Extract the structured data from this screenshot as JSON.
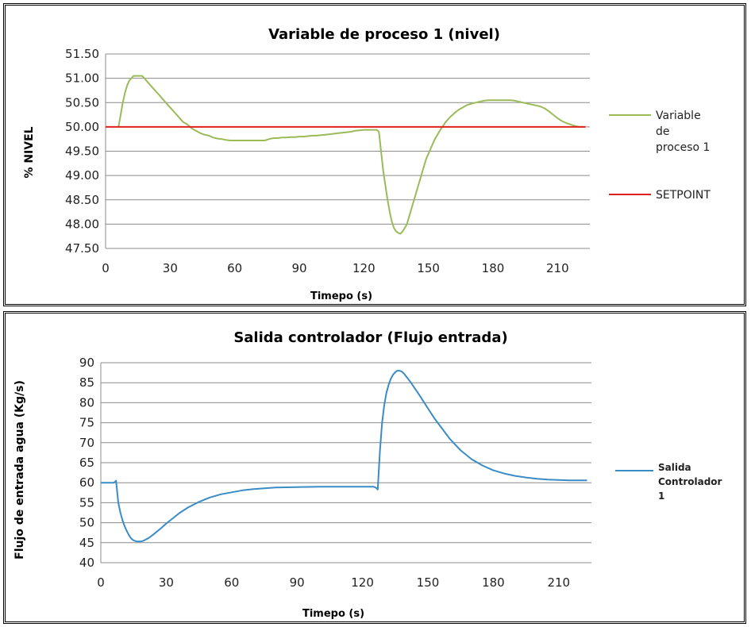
{
  "chart_data": [
    {
      "type": "line",
      "title": "Variable de proceso  1 (nivel)",
      "xlabel": "Timepo (s)",
      "ylabel": "% NIVEL",
      "xlim": [
        0,
        225
      ],
      "ylim": [
        47.5,
        51.5
      ],
      "x_ticks": [
        "0",
        "30",
        "60",
        "90",
        "120",
        "150",
        "180",
        "210"
      ],
      "y_ticks": [
        "47.50",
        "48.00",
        "48.50",
        "49.00",
        "49.50",
        "50.00",
        "50.50",
        "51.00",
        "51.50"
      ],
      "grid": true,
      "legend": "right",
      "series": [
        {
          "name": "Variable de proceso 1",
          "legend_lines": [
            "Variable",
            "de",
            "proceso 1"
          ],
          "color": "#9BBB59",
          "x": [
            6,
            7,
            8,
            9,
            10,
            11,
            12,
            13,
            14,
            15,
            17,
            18,
            20,
            22,
            24,
            26,
            28,
            30,
            32,
            34,
            36,
            38,
            40,
            42,
            44,
            46,
            48,
            50,
            52,
            54,
            56,
            58,
            60,
            62,
            64,
            66,
            68,
            70,
            72,
            74,
            76,
            78,
            80,
            82,
            84,
            86,
            88,
            90,
            92,
            94,
            96,
            98,
            100,
            102,
            104,
            106,
            108,
            110,
            112,
            114,
            116,
            118,
            120,
            122,
            124,
            126,
            127,
            128,
            129,
            130,
            131,
            132,
            133,
            134,
            135,
            136,
            137,
            138,
            139,
            140,
            141,
            142,
            143,
            144,
            145,
            146,
            147,
            148,
            149,
            150,
            151,
            152,
            153,
            154,
            155,
            156,
            157,
            158,
            159,
            160,
            162,
            164,
            166,
            168,
            170,
            172,
            174,
            176,
            178,
            180,
            182,
            184,
            186,
            188,
            190,
            192,
            194,
            196,
            198,
            200,
            202,
            204,
            206,
            208,
            210,
            212,
            214,
            216,
            218,
            220,
            222
          ],
          "y": [
            50.0,
            50.25,
            50.5,
            50.7,
            50.85,
            50.95,
            51.0,
            51.05,
            51.05,
            51.05,
            51.05,
            51.0,
            50.9,
            50.8,
            50.7,
            50.6,
            50.5,
            50.4,
            50.3,
            50.2,
            50.1,
            50.05,
            49.97,
            49.92,
            49.87,
            49.84,
            49.82,
            49.78,
            49.76,
            49.75,
            49.73,
            49.72,
            49.72,
            49.72,
            49.72,
            49.72,
            49.72,
            49.72,
            49.72,
            49.72,
            49.75,
            49.77,
            49.77,
            49.78,
            49.78,
            49.79,
            49.79,
            49.8,
            49.8,
            49.81,
            49.82,
            49.82,
            49.83,
            49.84,
            49.85,
            49.86,
            49.87,
            49.88,
            49.89,
            49.9,
            49.92,
            49.93,
            49.94,
            49.94,
            49.94,
            49.94,
            49.9,
            49.5,
            49.1,
            48.8,
            48.5,
            48.25,
            48.05,
            47.92,
            47.85,
            47.82,
            47.8,
            47.85,
            47.92,
            48.0,
            48.15,
            48.3,
            48.45,
            48.6,
            48.75,
            48.9,
            49.05,
            49.2,
            49.35,
            49.45,
            49.55,
            49.65,
            49.75,
            49.82,
            49.9,
            49.97,
            50.03,
            50.1,
            50.15,
            50.2,
            50.28,
            50.35,
            50.4,
            50.45,
            50.48,
            50.5,
            50.52,
            50.54,
            50.55,
            50.55,
            50.55,
            50.55,
            50.55,
            50.55,
            50.54,
            50.52,
            50.5,
            50.48,
            50.46,
            50.44,
            50.42,
            50.38,
            50.32,
            50.25,
            50.18,
            50.12,
            50.08,
            50.05,
            50.02,
            50.0,
            50.0
          ]
        },
        {
          "name": "SETPOINT",
          "color": "#E0201E",
          "x": [
            0,
            223
          ],
          "y": [
            50.0,
            50.0
          ]
        }
      ]
    },
    {
      "type": "line",
      "title": "Salida controlador (Flujo entrada)",
      "xlabel": "Timepo (s)",
      "ylabel": "Flujo de entrada agua (Kg/s)",
      "xlim": [
        0,
        225
      ],
      "ylim": [
        40,
        90
      ],
      "x_ticks": [
        "0",
        "30",
        "60",
        "90",
        "120",
        "150",
        "180",
        "210"
      ],
      "y_ticks": [
        "40",
        "45",
        "50",
        "55",
        "60",
        "65",
        "70",
        "75",
        "80",
        "85",
        "90"
      ],
      "grid": true,
      "legend": "right",
      "series": [
        {
          "name": "Salida Controlador 1",
          "legend_lines": [
            "Salida",
            "Controlador",
            "1"
          ],
          "color": "#3A8CC6",
          "x": [
            0,
            3,
            5,
            6,
            7,
            8,
            9,
            10,
            11,
            12,
            13,
            14,
            15,
            16,
            17,
            18,
            19,
            20,
            22,
            24,
            26,
            28,
            30,
            33,
            36,
            40,
            45,
            50,
            55,
            60,
            65,
            70,
            75,
            80,
            90,
            100,
            110,
            120,
            125,
            126,
            127,
            128,
            129,
            130,
            131,
            132,
            133,
            134,
            135,
            136,
            137,
            138,
            139,
            140,
            142,
            144,
            146,
            148,
            150,
            153,
            156,
            160,
            165,
            170,
            175,
            180,
            185,
            190,
            195,
            200,
            205,
            210,
            215,
            220,
            223
          ],
          "y": [
            60,
            60,
            60,
            60,
            60.5,
            55,
            52.5,
            50.5,
            49,
            47.8,
            46.8,
            46,
            45.6,
            45.4,
            45.3,
            45.3,
            45.4,
            45.6,
            46.2,
            47,
            47.9,
            48.8,
            49.8,
            51.1,
            52.4,
            53.8,
            55.2,
            56.3,
            57.1,
            57.6,
            58.1,
            58.4,
            58.6,
            58.8,
            58.9,
            59,
            59,
            59,
            59,
            58.8,
            58.3,
            68,
            75,
            79.5,
            82.5,
            84.5,
            86,
            87,
            87.6,
            88,
            88,
            87.8,
            87.3,
            86.6,
            85.2,
            83.6,
            82,
            80.3,
            78.6,
            76.1,
            73.9,
            71,
            68.1,
            65.9,
            64.3,
            63.1,
            62.3,
            61.7,
            61.3,
            61,
            60.8,
            60.7,
            60.6,
            60.6,
            60.6
          ]
        }
      ]
    }
  ]
}
